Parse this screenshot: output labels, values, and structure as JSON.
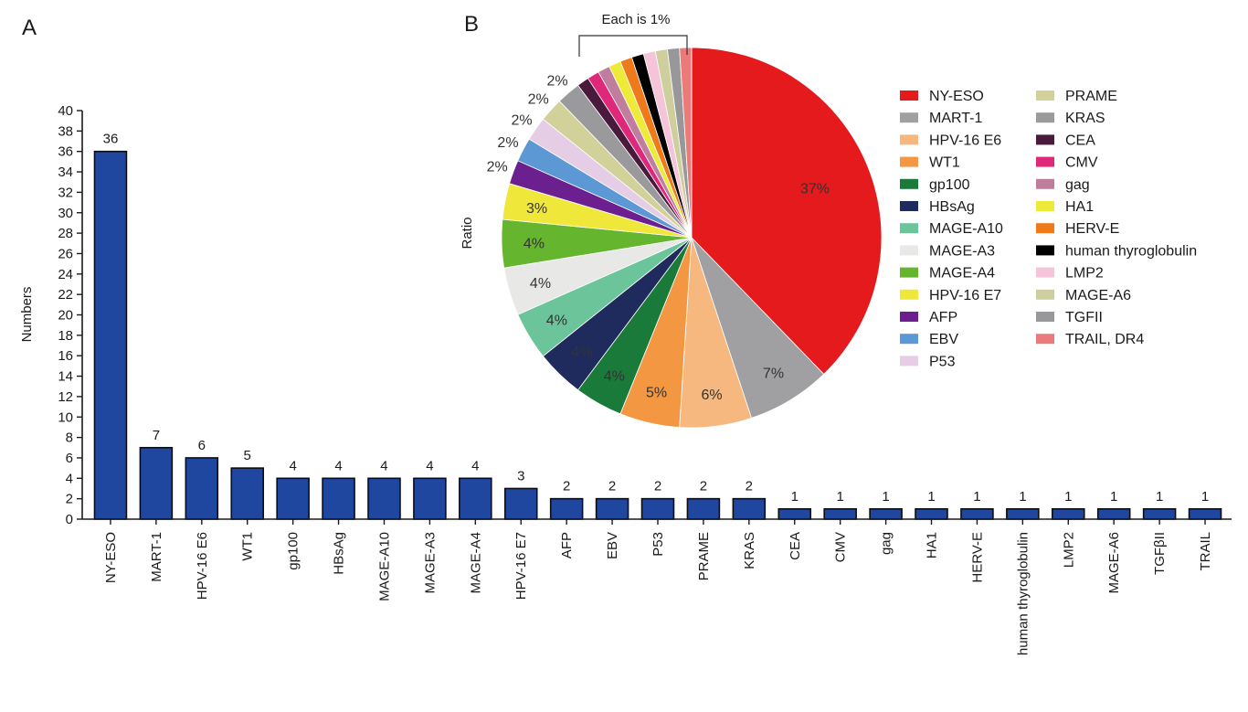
{
  "panels": {
    "a": "A",
    "b": "B"
  },
  "chart_data": [
    {
      "type": "bar",
      "ylabel": "Numbers",
      "xlabel": "",
      "ylim": [
        0,
        40
      ],
      "yticks": [
        0,
        2,
        4,
        6,
        8,
        10,
        12,
        14,
        16,
        18,
        20,
        22,
        24,
        26,
        28,
        30,
        32,
        34,
        36,
        38,
        40
      ],
      "bar_color": "#1f47a0",
      "categories": [
        "NY-ESO",
        "MART-1",
        "HPV-16 E6",
        "WT1",
        "gp100",
        "HBsAg",
        "MAGE-A10",
        "MAGE-A3",
        "MAGE-A4",
        "HPV-16 E7",
        "AFP",
        "EBV",
        "P53",
        "PRAME",
        "KRAS",
        "CEA",
        "CMV",
        "gag",
        "HA1",
        "HERV-E",
        "human thyroglobulin",
        "LMP2",
        "MAGE-A6",
        "TGFβII",
        "TRAIL"
      ],
      "values": [
        36,
        7,
        6,
        5,
        4,
        4,
        4,
        4,
        4,
        3,
        2,
        2,
        2,
        2,
        2,
        1,
        1,
        1,
        1,
        1,
        1,
        1,
        1,
        1,
        1
      ],
      "data_labels": [
        "36",
        "7",
        "6",
        "5",
        "4",
        "4",
        "4",
        "4",
        "4",
        "3",
        "2",
        "2",
        "2",
        "2",
        "2",
        "1",
        "1",
        "1",
        "1",
        "1",
        "1",
        "1",
        "1",
        "1",
        "1"
      ]
    },
    {
      "type": "pie",
      "ylabel": "Ratio",
      "annotation": "Each is 1%",
      "legend_position": "right",
      "slices": [
        {
          "name": "NY-ESO",
          "value": 37,
          "label": "37%",
          "color": "#e41a1c"
        },
        {
          "name": "MART-1",
          "value": 7,
          "label": "7%",
          "color": "#a0a0a3"
        },
        {
          "name": "HPV-16 E6",
          "value": 6,
          "label": "6%",
          "color": "#f6b87e"
        },
        {
          "name": "WT1",
          "value": 5,
          "label": "5%",
          "color": "#f39742"
        },
        {
          "name": "gp100",
          "value": 4,
          "label": "4%",
          "color": "#1a7a3a"
        },
        {
          "name": "HBsAg",
          "value": 4,
          "label": "4%",
          "color": "#1f2b5c"
        },
        {
          "name": "MAGE-A10",
          "value": 4,
          "label": "4%",
          "color": "#6cc49a"
        },
        {
          "name": "MAGE-A3",
          "value": 4,
          "label": "4%",
          "color": "#e8e8e6"
        },
        {
          "name": "MAGE-A4",
          "value": 4,
          "label": "4%",
          "color": "#66b52e"
        },
        {
          "name": "HPV-16 E7",
          "value": 3,
          "label": "3%",
          "color": "#efe83a"
        },
        {
          "name": "AFP",
          "value": 2,
          "label": "2%",
          "color": "#6c1f8f"
        },
        {
          "name": "EBV",
          "value": 2,
          "label": "2%",
          "color": "#5b98d4"
        },
        {
          "name": "P53",
          "value": 2,
          "label": "2%",
          "color": "#e6cde6"
        },
        {
          "name": "PRAME",
          "value": 2,
          "label": "2%",
          "color": "#d3d19a"
        },
        {
          "name": "KRAS",
          "value": 2,
          "label": "2%",
          "color": "#9a9a9c"
        },
        {
          "name": "CEA",
          "value": 1,
          "label": "",
          "color": "#4a1a3c"
        },
        {
          "name": "CMV",
          "value": 1,
          "label": "",
          "color": "#e0287a"
        },
        {
          "name": "gag",
          "value": 1,
          "label": "",
          "color": "#c07e9e"
        },
        {
          "name": "HA1",
          "value": 1,
          "label": "",
          "color": "#eeea3a"
        },
        {
          "name": "HERV-E",
          "value": 1,
          "label": "",
          "color": "#ee7a1c"
        },
        {
          "name": "human thyroglobulin",
          "value": 1,
          "label": "",
          "color": "#000000"
        },
        {
          "name": "LMP2",
          "value": 1,
          "label": "",
          "color": "#f6c4d9"
        },
        {
          "name": "MAGE-A6",
          "value": 1,
          "label": "",
          "color": "#cfcf9e"
        },
        {
          "name": "TGFII",
          "value": 1,
          "label": "",
          "color": "#98989a"
        },
        {
          "name": "TRAIL, DR4",
          "value": 1,
          "label": "",
          "color": "#ec7a7a"
        }
      ]
    }
  ]
}
